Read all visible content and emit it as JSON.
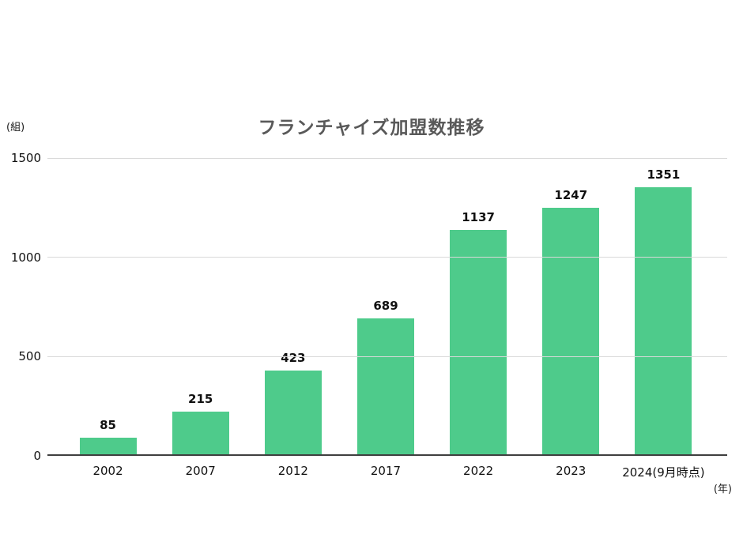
{
  "chart_data": {
    "type": "bar",
    "title": "フランチャイズ加盟数推移",
    "y_unit": "(組)",
    "x_unit": "(年)",
    "categories": [
      "2002",
      "2007",
      "2012",
      "2017",
      "2022",
      "2023",
      "2024(9月時点)"
    ],
    "values": [
      85,
      215,
      423,
      689,
      1137,
      1247,
      1351
    ],
    "yticks": [
      0,
      500,
      1000,
      1500
    ],
    "ylim": [
      0,
      1500
    ],
    "bar_color": "#4ecb8b",
    "grid_color": "#d9d9d9",
    "axis_color": "#3f3f3f",
    "grid": true,
    "value_labels": true,
    "legend": "none"
  }
}
